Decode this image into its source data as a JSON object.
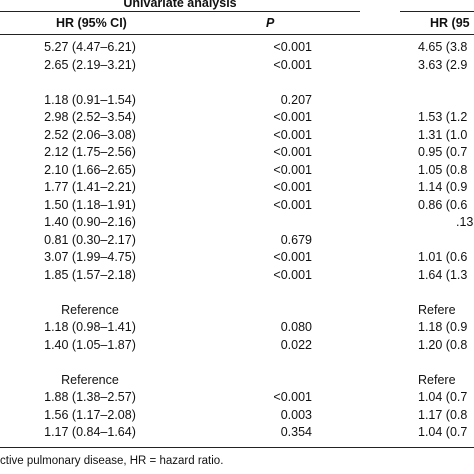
{
  "table": {
    "group_header": "Univariate analysis",
    "col_hr": "HR (95% CI)",
    "col_p": "P",
    "col_hr_right": "HR (95",
    "rows": [
      {
        "hr": "5.27 (4.47–6.21)",
        "p": "<0.001",
        "r": "4.65 (3.8"
      },
      {
        "hr": "2.65 (2.19–3.21)",
        "p": "<0.001",
        "r": "3.63 (2.9"
      },
      {
        "hr": "",
        "p": "",
        "r": ""
      },
      {
        "hr": "1.18 (0.91–1.54)",
        "p": "0.207",
        "r": ""
      },
      {
        "hr": "2.98 (2.52–3.54)",
        "p": "<0.001",
        "r": "1.53 (1.2"
      },
      {
        "hr": "2.52 (2.06–3.08)",
        "p": "<0.001",
        "r": "1.31 (1.0"
      },
      {
        "hr": "2.12 (1.75–2.56)",
        "p": "<0.001",
        "r": "0.95 (0.7"
      },
      {
        "hr": "2.10 (1.66–2.65)",
        "p": "<0.001",
        "r": "1.05 (0.8"
      },
      {
        "hr": "1.77 (1.41–2.21)",
        "p": "<0.001",
        "r": "1.14 (0.9"
      },
      {
        "hr": "1.50 (1.18–1.91)",
        "p": "<0.001",
        "r": "0.86 (0.6"
      },
      {
        "hr": "1.40 (0.90–2.16)",
        "p": "",
        "r": ".13"
      },
      {
        "hr": "0.81 (0.30–2.17)",
        "p": "0.679",
        "r": ""
      },
      {
        "hr": "3.07 (1.99–4.75)",
        "p": "<0.001",
        "r": "1.01 (0.6"
      },
      {
        "hr": "1.85 (1.57–2.18)",
        "p": "<0.001",
        "r": "1.64 (1.3"
      },
      {
        "hr": "",
        "p": "",
        "r": ""
      },
      {
        "hr": "Reference",
        "p": "",
        "r": "Refere"
      },
      {
        "hr": "1.18 (0.98–1.41)",
        "p": "0.080",
        "r": "1.18 (0.9"
      },
      {
        "hr": "1.40 (1.05–1.87)",
        "p": "0.022",
        "r": "1.20 (0.8"
      },
      {
        "hr": "",
        "p": "",
        "r": ""
      },
      {
        "hr": "Reference",
        "p": "",
        "r": "Refere"
      },
      {
        "hr": "1.88 (1.38–2.57)",
        "p": "<0.001",
        "r": "1.04 (0.7"
      },
      {
        "hr": "1.56 (1.17–2.08)",
        "p": "0.003",
        "r": "1.17 (0.8"
      },
      {
        "hr": "1.17 (0.84–1.64)",
        "p": "0.354",
        "r": "1.04 (0.7"
      }
    ]
  },
  "footnote": "ctive pulmonary disease, HR = hazard ratio."
}
